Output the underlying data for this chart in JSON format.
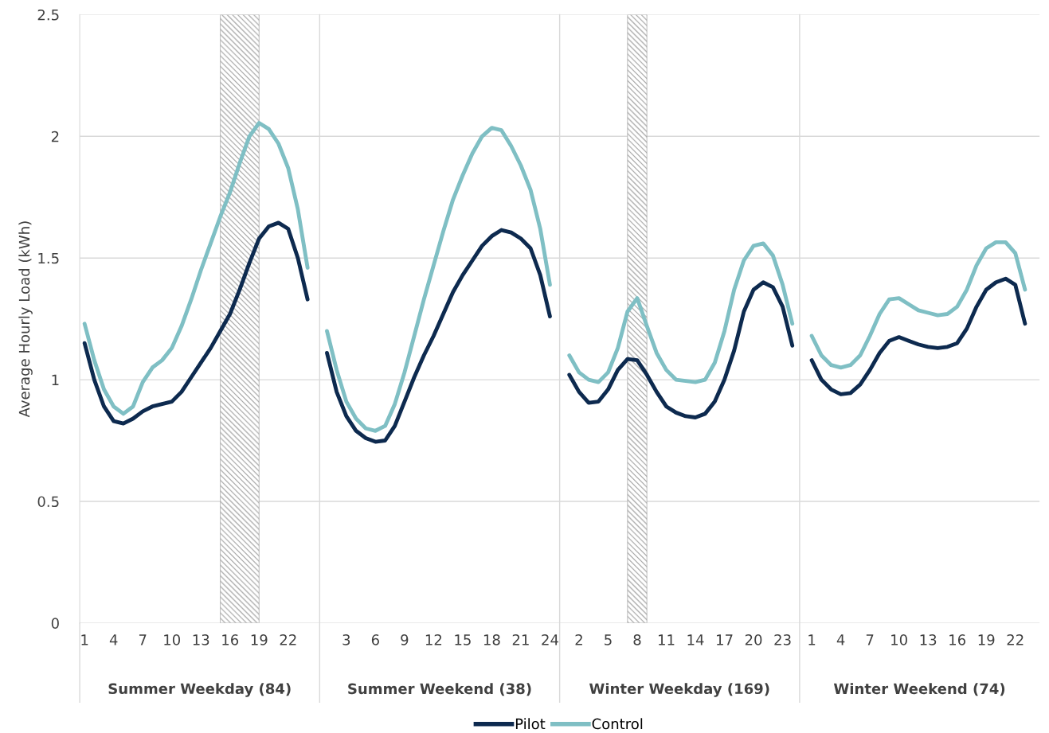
{
  "chart_data": {
    "type": "line",
    "ylabel": "Average Hourly Load (kWh)",
    "categories": [
      "1",
      null,
      null,
      "4",
      null,
      null,
      "7",
      null,
      null,
      "10",
      null,
      null,
      "13",
      null,
      null,
      "16",
      null,
      null,
      "19",
      null,
      null,
      "22",
      null,
      null,
      null,
      null,
      null,
      "3",
      null,
      null,
      "6",
      null,
      null,
      "9",
      null,
      null,
      "12",
      null,
      null,
      "15",
      null,
      null,
      "18",
      null,
      null,
      "21",
      null,
      null,
      "24",
      null,
      null,
      "2",
      null,
      null,
      "5",
      null,
      null,
      "8",
      null,
      null,
      "11",
      null,
      null,
      "14",
      null,
      null,
      "17",
      null,
      null,
      "20",
      null,
      null,
      "23",
      null,
      null,
      "1",
      null,
      null,
      "4",
      null,
      null,
      "7",
      null,
      null,
      "10",
      null,
      null,
      "13",
      null,
      null,
      "16",
      null,
      null,
      "19",
      null,
      null,
      "22",
      null,
      null
    ],
    "series": [
      {
        "name": "Pilot",
        "color": "#0d2a4f",
        "values": [
          1.15,
          1.0,
          0.89,
          0.83,
          0.82,
          0.84,
          0.87,
          0.89,
          0.9,
          0.91,
          0.95,
          1.01,
          1.07,
          1.13,
          1.2,
          1.27,
          1.37,
          1.48,
          1.58,
          1.63,
          1.645,
          1.62,
          1.5,
          1.33,
          null,
          1.11,
          0.95,
          0.85,
          0.79,
          0.76,
          0.745,
          0.75,
          0.81,
          0.91,
          1.01,
          1.1,
          1.18,
          1.27,
          1.36,
          1.43,
          1.49,
          1.55,
          1.59,
          1.615,
          1.605,
          1.58,
          1.54,
          1.43,
          1.26,
          null,
          1.02,
          0.95,
          0.905,
          0.91,
          0.96,
          1.04,
          1.085,
          1.08,
          1.02,
          0.95,
          0.89,
          0.865,
          0.85,
          0.845,
          0.86,
          0.91,
          1.0,
          1.12,
          1.28,
          1.37,
          1.4,
          1.38,
          1.3,
          1.14,
          null,
          1.08,
          1.0,
          0.96,
          0.94,
          0.945,
          0.98,
          1.04,
          1.11,
          1.16,
          1.175,
          1.16,
          1.145,
          1.135,
          1.13,
          1.135,
          1.15,
          1.21,
          1.3,
          1.37,
          1.4,
          1.415,
          1.39,
          1.23,
          null
        ]
      },
      {
        "name": "Control",
        "color": "#7fbfc4",
        "values": [
          1.23,
          1.08,
          0.96,
          0.89,
          0.86,
          0.89,
          0.99,
          1.05,
          1.08,
          1.13,
          1.22,
          1.33,
          1.45,
          1.56,
          1.67,
          1.77,
          1.89,
          2.0,
          2.055,
          2.03,
          1.97,
          1.87,
          1.7,
          1.46,
          null,
          1.2,
          1.04,
          0.91,
          0.84,
          0.8,
          0.79,
          0.81,
          0.9,
          1.03,
          1.18,
          1.33,
          1.47,
          1.61,
          1.74,
          1.84,
          1.93,
          2.0,
          2.035,
          2.025,
          1.96,
          1.88,
          1.78,
          1.62,
          1.39,
          null,
          1.1,
          1.03,
          1.0,
          0.99,
          1.03,
          1.13,
          1.28,
          1.335,
          1.22,
          1.11,
          1.04,
          1.0,
          0.995,
          0.99,
          1.0,
          1.07,
          1.2,
          1.37,
          1.49,
          1.55,
          1.56,
          1.51,
          1.39,
          1.23,
          null,
          1.18,
          1.1,
          1.06,
          1.05,
          1.06,
          1.1,
          1.18,
          1.27,
          1.33,
          1.335,
          1.31,
          1.285,
          1.275,
          1.265,
          1.27,
          1.3,
          1.37,
          1.47,
          1.54,
          1.565,
          1.565,
          1.52,
          1.37,
          null
        ]
      }
    ],
    "ylim": [
      0,
      2.5
    ],
    "yticks": [
      0,
      0.5,
      1,
      1.5,
      2,
      2.5
    ],
    "grid": "y",
    "legend": "bottom",
    "marker": "none",
    "line_style": "solid",
    "annotations": [
      "Summer Weekday (84)",
      "Summer Weekend (38)",
      "Winter Weekday (169)",
      "Winter Weekend (74)"
    ]
  }
}
